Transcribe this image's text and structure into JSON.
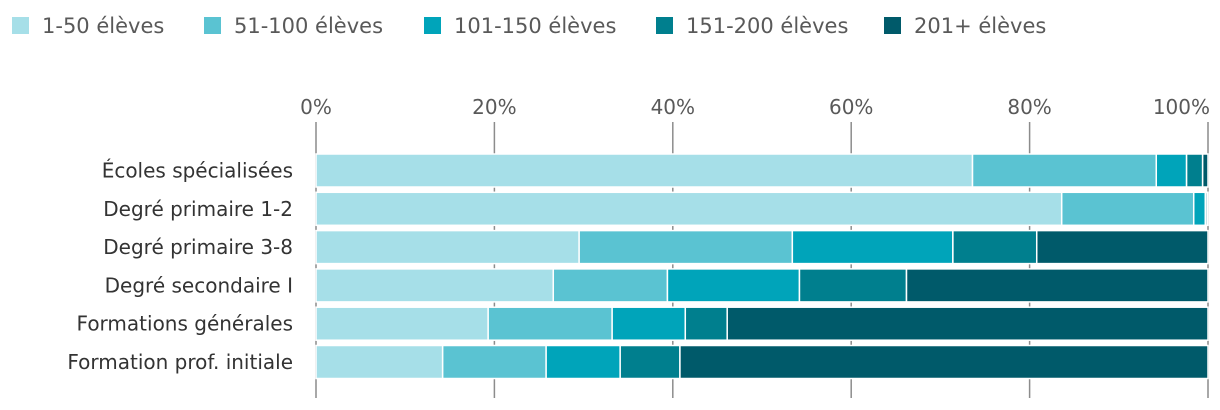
{
  "chart_data": {
    "type": "bar",
    "orientation": "horizontal",
    "stacked": true,
    "normalized": true,
    "title": "",
    "xlabel": "",
    "ylabel": "",
    "xlim": [
      0,
      100
    ],
    "x_ticks": [
      "0%",
      "20%",
      "40%",
      "60%",
      "80%",
      "100%"
    ],
    "x_tick_values": [
      0,
      20,
      40,
      60,
      80,
      100
    ],
    "legend_position": "top-left",
    "grid": true,
    "categories": [
      "Écoles spécialisées",
      "Degré primaire 1-2",
      "Degré primaire 3-8",
      "Degré secondaire I",
      "Formations générales",
      "Formation prof. initiale"
    ],
    "series": [
      {
        "name": "1-50 élèves",
        "color": "#a6dfe8",
        "values": [
          73.6,
          83.6,
          29.5,
          26.6,
          19.3,
          14.2
        ]
      },
      {
        "name": "51-100 élèves",
        "color": "#5ac3d2",
        "values": [
          20.6,
          14.8,
          23.9,
          12.8,
          13.9,
          11.6
        ]
      },
      {
        "name": "101-150 élèves",
        "color": "#00a4ba",
        "values": [
          3.4,
          1.3,
          18.0,
          14.8,
          8.2,
          8.3
        ]
      },
      {
        "name": "151-200 élèves",
        "color": "#007f8e",
        "values": [
          1.8,
          0.2,
          9.4,
          12.0,
          4.7,
          6.7
        ]
      },
      {
        "name": "201+ élèves",
        "color": "#005a6a",
        "values": [
          0.6,
          0.1,
          19.2,
          33.8,
          53.9,
          59.2
        ]
      }
    ]
  }
}
